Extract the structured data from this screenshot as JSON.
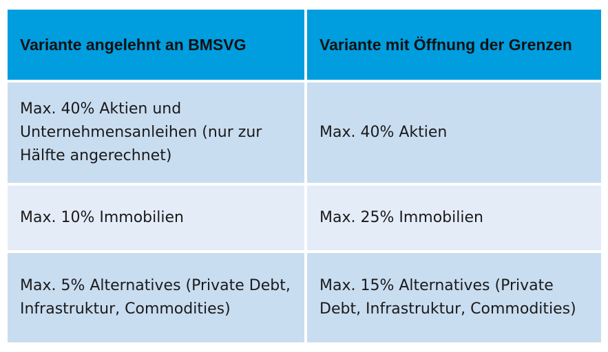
{
  "table": {
    "headers": [
      "Variante angelehnt an BMSVG",
      "Variante mit Öffnung der Grenzen"
    ],
    "rows": [
      [
        "Max. 40% Aktien und Unternehmensanleihen (nur zur Hälfte angerechnet)",
        "Max. 40% Aktien"
      ],
      [
        "Max. 10% Immobilien",
        "Max. 25% Immobilien"
      ],
      [
        "Max. 5% Alternatives (Private Debt, Infrastruktur, Commodities)",
        "Max. 15% Alternatives (Private Debt, Infrastruktur, Commodities)"
      ]
    ],
    "colors": {
      "header_bg": "#009ddf",
      "row_dark_bg": "#c9ddf1",
      "row_light_bg": "#e4ecf8"
    }
  }
}
